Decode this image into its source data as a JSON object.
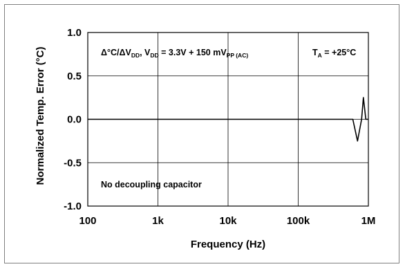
{
  "chart_data": {
    "type": "line",
    "x_scale": "log",
    "xlim": [
      100,
      1000000
    ],
    "ylim": [
      -1.0,
      1.0
    ],
    "grid": true,
    "xlabel": "Frequency (Hz)",
    "ylabel": "Normalized Temp. Error (°C)",
    "x_ticks": [
      {
        "value": 100,
        "label": "100"
      },
      {
        "value": 1000,
        "label": "1k"
      },
      {
        "value": 10000,
        "label": "10k"
      },
      {
        "value": 100000,
        "label": "100k"
      },
      {
        "value": 1000000,
        "label": "1M"
      }
    ],
    "y_ticks": [
      {
        "value": 1.0,
        "label": "1.0"
      },
      {
        "value": 0.5,
        "label": "0.5"
      },
      {
        "value": 0.0,
        "label": "0.0"
      },
      {
        "value": -0.5,
        "label": "-0.5"
      },
      {
        "value": -1.0,
        "label": "-1.0"
      }
    ],
    "annotations": {
      "formula": {
        "part1": "Δ°C/ΔV",
        "sub1": "DD",
        "part2": ", V",
        "sub2": "DD",
        "part3": " = 3.3V + 150 mV",
        "sub3": "PP (AC)"
      },
      "temperature": {
        "part1": "T",
        "sub1": "A",
        "part2": " = +25°C"
      },
      "note": "No decoupling capacitor"
    },
    "series": [
      {
        "color": "#000000",
        "points": [
          [
            100,
            0.0
          ],
          [
            1000,
            0.0
          ],
          [
            10000,
            0.0
          ],
          [
            100000,
            0.0
          ],
          [
            600000,
            0.0
          ],
          [
            700000,
            -0.25
          ],
          [
            800000,
            0.0
          ],
          [
            850000,
            0.25
          ],
          [
            920000,
            0.0
          ],
          [
            1000000,
            0.0
          ]
        ]
      }
    ]
  }
}
